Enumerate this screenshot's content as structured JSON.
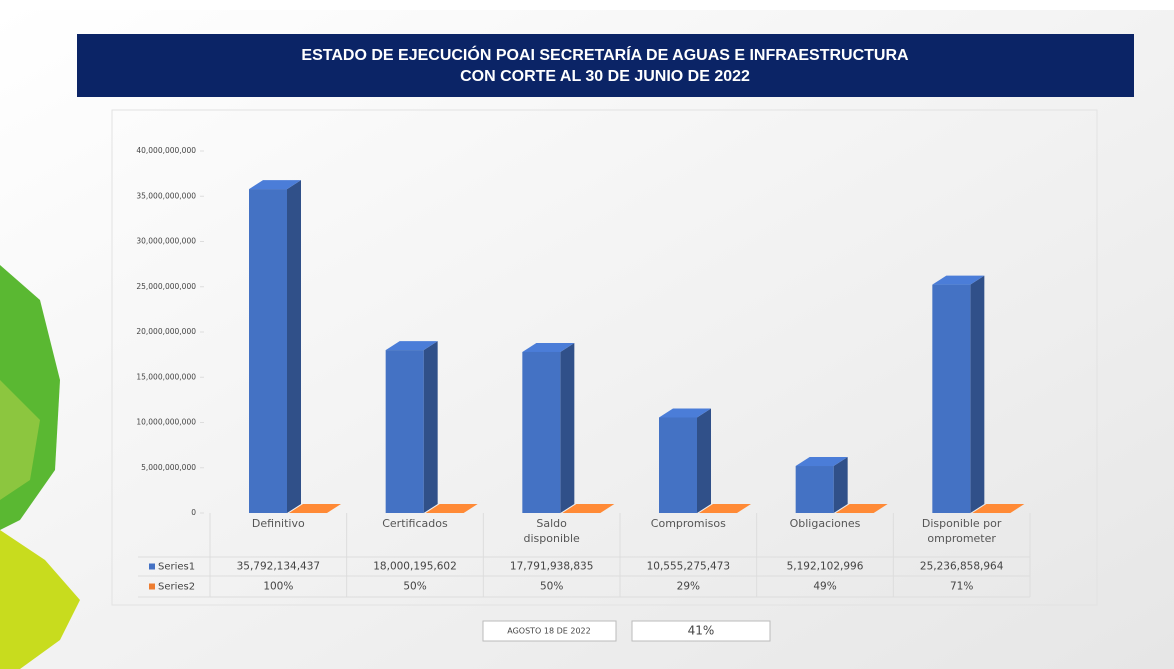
{
  "chart_data": {
    "type": "bar3d",
    "title": "ESTADO DE EJECUCIÓN POAI SECRETARÍA DE AGUAS E INFRAESTRUCTURA",
    "subtitle": "CON CORTE AL 30 DE JUNIO DE 2022",
    "categories": [
      "Definitivo",
      "Certificados",
      "Saldo disponible",
      "Compromisos",
      "Obligaciones",
      "Disponible por omprometer"
    ],
    "series": [
      {
        "name": "Series1",
        "color": "#4472c4",
        "values": [
          35792134437,
          18000195602,
          17791938835,
          10555275473,
          5192102996,
          25236858964
        ],
        "value_labels": [
          "35,792,134,437",
          "18,000,195,602",
          "17,791,938,835",
          "10,555,275,473",
          "5,192,102,996",
          "25,236,858,964"
        ]
      },
      {
        "name": "Series2",
        "color": "#ed7d31",
        "values": [
          100,
          50,
          50,
          29,
          49,
          71
        ],
        "value_labels": [
          "100%",
          "50%",
          "50%",
          "29%",
          "49%",
          "71%"
        ]
      }
    ],
    "ylim": [
      0,
      40000000000
    ],
    "yticks": [
      0,
      {
        "value": 5000000000,
        "label": "5,000,000,000"
      },
      {
        "value": 10000000000,
        "label": "10,000,000,000"
      },
      {
        "value": 15000000000,
        "label": "15,000,000,000"
      },
      {
        "value": 20000000000,
        "label": "20,000,000,000"
      },
      {
        "value": 25000000000,
        "label": "25,000,000,000"
      },
      {
        "value": 30000000000,
        "label": "30,000,000,000"
      },
      {
        "value": 35000000000,
        "label": "35,000,000,000"
      },
      {
        "value": 40000000000,
        "label": "40,000,000,000"
      }
    ],
    "footer_date": "AGOSTO  18 DE 2022",
    "footer_value": "41%"
  }
}
